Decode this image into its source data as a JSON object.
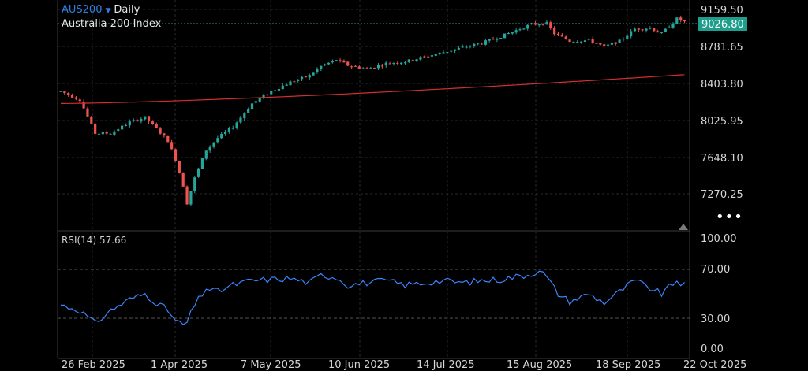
{
  "header": {
    "symbol": "AUS200",
    "dropdown_icon": "triangle-down-icon",
    "timeframe": "Daily",
    "instrument_name": "Australia 200 Index"
  },
  "price_axis": {
    "labels": [
      "9159.50",
      "8781.65",
      "8403.80",
      "8025.95",
      "7648.10",
      "7270.25"
    ],
    "current_price": "9026.80",
    "current_price_color": "#1f9e8e"
  },
  "rsi_panel": {
    "label": "RSI(14) 57.66",
    "axis_labels": [
      "100.00",
      "70.00",
      "30.00",
      "0.00"
    ],
    "line_color": "#3a86ff"
  },
  "date_axis": {
    "labels": [
      "26 Feb 2025",
      "1 Apr 2025",
      "7 May 2025",
      "10 Jun 2025",
      "14 Jul 2025",
      "15 Aug 2025",
      "18 Sep 2025",
      "22 Oct 2025"
    ]
  },
  "more_menu": "•••",
  "colors": {
    "bull": "#26a69a",
    "bear": "#ef5350",
    "ma": "#d32f2f",
    "grid": "#2a2a2a"
  },
  "chart_data": [
    {
      "type": "candlestick",
      "title": "AUS200",
      "ylim": [
        7100,
        9250
      ],
      "moving_average_start": 8150,
      "moving_average_end": 8460,
      "anchors": [
        {
          "t": 0,
          "v": 8280
        },
        {
          "t": 5,
          "v": 8190
        },
        {
          "t": 9,
          "v": 7830
        },
        {
          "t": 13,
          "v": 7830
        },
        {
          "t": 18,
          "v": 7950
        },
        {
          "t": 22,
          "v": 8000
        },
        {
          "t": 25,
          "v": 7880
        },
        {
          "t": 28,
          "v": 7750
        },
        {
          "t": 30,
          "v": 7550
        },
        {
          "t": 32,
          "v": 7270
        },
        {
          "t": 33,
          "v": 7080
        },
        {
          "t": 35,
          "v": 7350
        },
        {
          "t": 38,
          "v": 7650
        },
        {
          "t": 41,
          "v": 7780
        },
        {
          "t": 45,
          "v": 7900
        },
        {
          "t": 50,
          "v": 8150
        },
        {
          "t": 55,
          "v": 8280
        },
        {
          "t": 60,
          "v": 8380
        },
        {
          "t": 65,
          "v": 8450
        },
        {
          "t": 68,
          "v": 8550
        },
        {
          "t": 72,
          "v": 8620
        },
        {
          "t": 75,
          "v": 8560
        },
        {
          "t": 80,
          "v": 8520
        },
        {
          "t": 85,
          "v": 8580
        },
        {
          "t": 90,
          "v": 8600
        },
        {
          "t": 95,
          "v": 8650
        },
        {
          "t": 100,
          "v": 8700
        },
        {
          "t": 105,
          "v": 8750
        },
        {
          "t": 110,
          "v": 8800
        },
        {
          "t": 115,
          "v": 8870
        },
        {
          "t": 118,
          "v": 8920
        },
        {
          "t": 123,
          "v": 9000
        },
        {
          "t": 127,
          "v": 9010
        },
        {
          "t": 129,
          "v": 8900
        },
        {
          "t": 133,
          "v": 8820
        },
        {
          "t": 138,
          "v": 8830
        },
        {
          "t": 142,
          "v": 8760
        },
        {
          "t": 146,
          "v": 8820
        },
        {
          "t": 150,
          "v": 8950
        },
        {
          "t": 154,
          "v": 8960
        },
        {
          "t": 157,
          "v": 8900
        },
        {
          "t": 161,
          "v": 9060
        },
        {
          "t": 163,
          "v": 9026
        }
      ]
    },
    {
      "type": "line",
      "title": "RSI(14)",
      "ylim": [
        0,
        100
      ],
      "reference_lines": [
        70,
        30
      ],
      "anchors": [
        {
          "t": 0,
          "v": 40
        },
        {
          "t": 5,
          "v": 35
        },
        {
          "t": 9,
          "v": 23
        },
        {
          "t": 13,
          "v": 35
        },
        {
          "t": 18,
          "v": 45
        },
        {
          "t": 22,
          "v": 50
        },
        {
          "t": 25,
          "v": 42
        },
        {
          "t": 28,
          "v": 35
        },
        {
          "t": 30,
          "v": 25
        },
        {
          "t": 32,
          "v": 22
        },
        {
          "t": 33,
          "v": 24
        },
        {
          "t": 35,
          "v": 40
        },
        {
          "t": 38,
          "v": 55
        },
        {
          "t": 41,
          "v": 52
        },
        {
          "t": 45,
          "v": 58
        },
        {
          "t": 50,
          "v": 62
        },
        {
          "t": 55,
          "v": 63
        },
        {
          "t": 60,
          "v": 64
        },
        {
          "t": 65,
          "v": 60
        },
        {
          "t": 68,
          "v": 67
        },
        {
          "t": 72,
          "v": 65
        },
        {
          "t": 75,
          "v": 58
        },
        {
          "t": 80,
          "v": 60
        },
        {
          "t": 85,
          "v": 62
        },
        {
          "t": 90,
          "v": 58
        },
        {
          "t": 95,
          "v": 60
        },
        {
          "t": 100,
          "v": 62
        },
        {
          "t": 105,
          "v": 60
        },
        {
          "t": 110,
          "v": 62
        },
        {
          "t": 115,
          "v": 63
        },
        {
          "t": 118,
          "v": 65
        },
        {
          "t": 123,
          "v": 68
        },
        {
          "t": 125,
          "v": 72
        },
        {
          "t": 127,
          "v": 65
        },
        {
          "t": 130,
          "v": 50
        },
        {
          "t": 133,
          "v": 43
        },
        {
          "t": 138,
          "v": 50
        },
        {
          "t": 142,
          "v": 42
        },
        {
          "t": 146,
          "v": 52
        },
        {
          "t": 150,
          "v": 62
        },
        {
          "t": 154,
          "v": 55
        },
        {
          "t": 157,
          "v": 50
        },
        {
          "t": 161,
          "v": 62
        },
        {
          "t": 163,
          "v": 57.66
        }
      ]
    }
  ]
}
